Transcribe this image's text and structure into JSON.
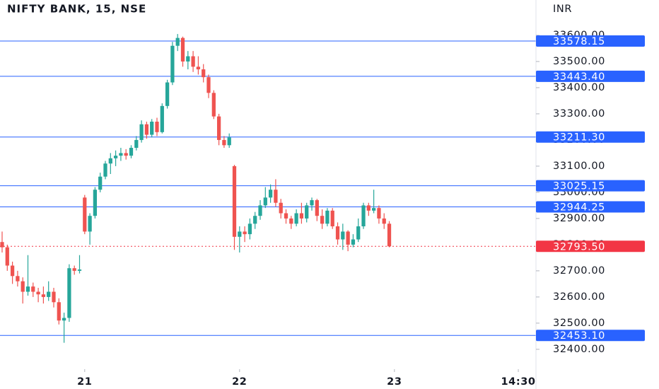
{
  "chart_data": {
    "type": "candlestick",
    "title": "NIFTY BANK, 15, NSE",
    "currency": "INR",
    "up_color": "#26a69a",
    "down_color": "#ef5350",
    "level_color": "#2962ff",
    "last_color": "#f23645",
    "grid": false,
    "open": [
      32810,
      32790,
      32720,
      32680,
      32660,
      32620,
      32640,
      32620,
      32610,
      32600,
      32620,
      32580,
      32510,
      32520,
      32710,
      32700,
      32980,
      32850,
      32910,
      33010,
      33060,
      33110,
      33130,
      33140,
      33150,
      33140,
      33170,
      33200,
      33260,
      33220,
      33270,
      33230,
      33330,
      33420,
      33560,
      33590,
      33500,
      33520,
      33480,
      33470,
      33440,
      33380,
      33290,
      33200,
      33180,
      33100,
      32830,
      32850,
      32840,
      32880,
      32910,
      32950,
      32980,
      33010,
      32960,
      32920,
      32900,
      32880,
      32920,
      32900,
      32950,
      32970,
      32910,
      32880,
      32930,
      32870,
      32820,
      32850,
      32800,
      32820,
      32870,
      32950,
      32930,
      32940,
      32900,
      32880
    ],
    "high": [
      32850,
      32800,
      32735,
      32700,
      32675,
      32760,
      32655,
      32635,
      32640,
      32660,
      32635,
      32595,
      32540,
      32725,
      32720,
      32760,
      32990,
      32920,
      33020,
      33075,
      33120,
      33150,
      33160,
      33170,
      33165,
      33180,
      33215,
      33275,
      33270,
      33280,
      33285,
      33340,
      33430,
      33575,
      33605,
      33595,
      33540,
      33540,
      33520,
      33490,
      33450,
      33390,
      33300,
      33215,
      33225,
      33105,
      32870,
      32870,
      32900,
      32925,
      32970,
      33020,
      33030,
      33050,
      32975,
      32935,
      32910,
      32935,
      32960,
      32960,
      32980,
      32975,
      32935,
      32940,
      32940,
      32885,
      32880,
      32855,
      32840,
      32900,
      32960,
      32960,
      33010,
      32950,
      32920,
      32890
    ],
    "low": [
      32770,
      32700,
      32650,
      32640,
      32575,
      32605,
      32600,
      32580,
      32575,
      32585,
      32560,
      32495,
      32425,
      32505,
      32685,
      32690,
      32840,
      32800,
      32900,
      33000,
      33050,
      33070,
      33100,
      33120,
      33125,
      33130,
      33160,
      33190,
      33205,
      33210,
      33215,
      33225,
      33320,
      33410,
      33540,
      33480,
      33470,
      33460,
      33450,
      33420,
      33360,
      33280,
      33180,
      33170,
      33170,
      32780,
      32770,
      32810,
      32820,
      32860,
      32895,
      32940,
      32960,
      32945,
      32900,
      32880,
      32860,
      32870,
      32880,
      32885,
      32930,
      32890,
      32860,
      32870,
      32860,
      32800,
      32780,
      32775,
      32790,
      32810,
      32860,
      32910,
      32920,
      32880,
      32860,
      32790
    ],
    "close": [
      32790,
      32720,
      32680,
      32660,
      32620,
      32640,
      32620,
      32610,
      32600,
      32620,
      32580,
      32510,
      32520,
      32710,
      32700,
      32705,
      32850,
      32910,
      33010,
      33060,
      33110,
      33130,
      33140,
      33150,
      33140,
      33170,
      33200,
      33260,
      33220,
      33270,
      33230,
      33330,
      33420,
      33560,
      33590,
      33500,
      33520,
      33480,
      33470,
      33440,
      33380,
      33290,
      33200,
      33180,
      33210,
      32830,
      32850,
      32840,
      32880,
      32910,
      32950,
      32980,
      33010,
      32960,
      32920,
      32900,
      32880,
      32920,
      32900,
      32950,
      32970,
      32910,
      32880,
      32930,
      32870,
      32820,
      32850,
      32800,
      32820,
      32870,
      32950,
      32930,
      32940,
      32900,
      32880,
      32793.5
    ],
    "xlim": [
      -0.41,
      103.42
    ],
    "xticks": [
      {
        "value": 16,
        "label": "21"
      },
      {
        "value": 46,
        "label": "22"
      },
      {
        "value": 76,
        "label": "23"
      },
      {
        "value": 100,
        "label": "14:30"
      }
    ],
    "ylim": [
      32324,
      33735
    ],
    "yticks": [
      {
        "value": 32400,
        "label": "32400.00"
      },
      {
        "value": 32500,
        "label": "32500.00"
      },
      {
        "value": 32600,
        "label": "32600.00"
      },
      {
        "value": 32700,
        "label": "32700.00"
      },
      {
        "value": 32800,
        "label": "32800.00"
      },
      {
        "value": 32900,
        "label": "32900.00"
      },
      {
        "value": 33000,
        "label": "33000.00"
      },
      {
        "value": 33100,
        "label": "33100.00"
      },
      {
        "value": 33200,
        "label": "33200.00"
      },
      {
        "value": 33300,
        "label": "33300.00"
      },
      {
        "value": 33400,
        "label": "33400.00"
      },
      {
        "value": 33500,
        "label": "33500.00"
      },
      {
        "value": 33600,
        "label": "33600.00"
      }
    ],
    "levels": [
      {
        "value": 33578.15,
        "label": "33578.15"
      },
      {
        "value": 33443.4,
        "label": "33443.40"
      },
      {
        "value": 33211.3,
        "label": "33211.30"
      },
      {
        "value": 33025.15,
        "label": "33025.15"
      },
      {
        "value": 32944.25,
        "label": "32944.25"
      },
      {
        "value": 32453.1,
        "label": "32453.10"
      }
    ],
    "last_price": {
      "value": 32793.5,
      "label": "32793.50"
    }
  }
}
